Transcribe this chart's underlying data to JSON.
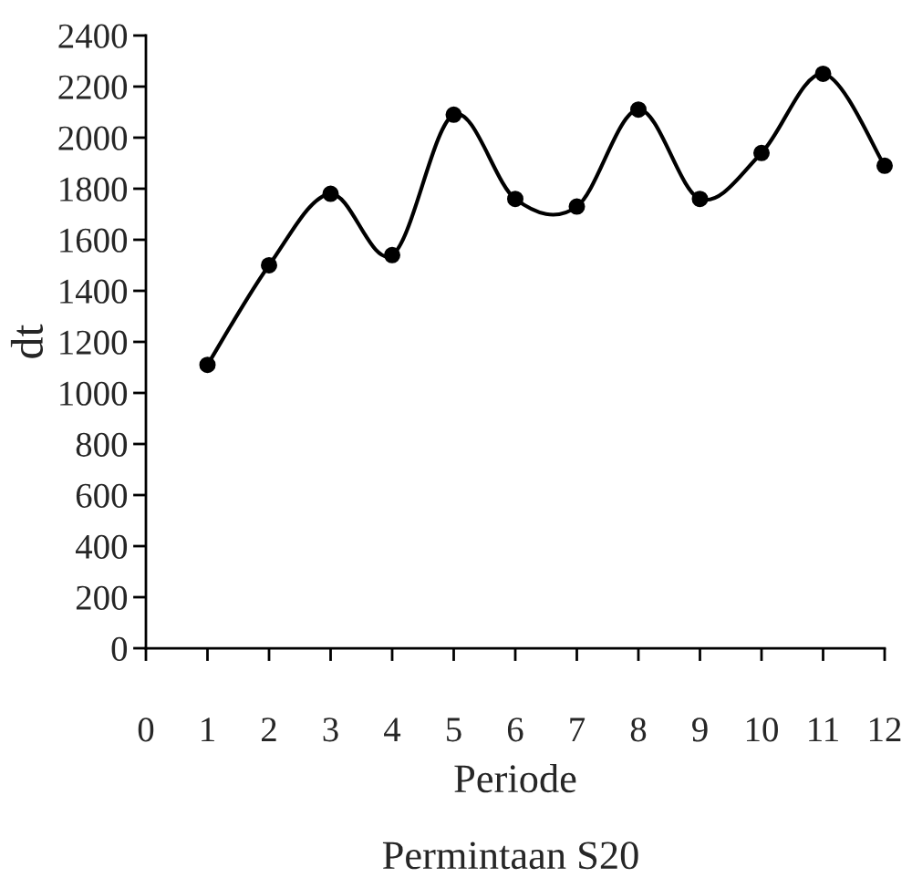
{
  "chart_data": {
    "type": "line",
    "title": "Permintaan S20",
    "xlabel": "Periode",
    "ylabel": "dt",
    "x": [
      1,
      2,
      3,
      4,
      5,
      6,
      7,
      8,
      9,
      10,
      11,
      12
    ],
    "series": [
      {
        "color": "#000000",
        "values": [
          1110,
          1500,
          1780,
          1540,
          2090,
          1760,
          1730,
          2110,
          1760,
          1940,
          2250,
          1890
        ]
      }
    ],
    "xlim": [
      0,
      12
    ],
    "ylim": [
      0,
      2400
    ],
    "xticks": [
      0,
      1,
      2,
      3,
      4,
      5,
      6,
      7,
      8,
      9,
      10,
      11,
      12
    ],
    "yticks": [
      0,
      200,
      400,
      600,
      800,
      1000,
      1200,
      1400,
      1600,
      1800,
      2000,
      2200,
      2400
    ],
    "marker": "circle",
    "line_style": "solid",
    "grid": false,
    "legend": false
  }
}
